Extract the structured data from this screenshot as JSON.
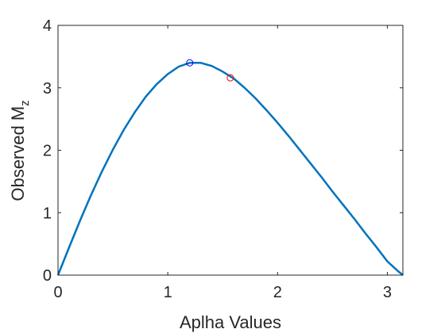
{
  "chart_data": {
    "type": "line",
    "title": "",
    "xlabel": "Aplha Values",
    "ylabel": "Observed M",
    "ylabel_subscript": "z",
    "xlim": [
      0,
      3.1416
    ],
    "ylim": [
      0,
      4
    ],
    "xticks": [
      0,
      1,
      2,
      3
    ],
    "yticks": [
      0,
      1,
      2,
      3,
      4
    ],
    "grid": false,
    "series": [
      {
        "color": "#0072BD",
        "x": [
          0,
          0.1,
          0.2,
          0.3,
          0.4,
          0.5,
          0.6,
          0.7,
          0.8,
          0.9,
          1.0,
          1.1,
          1.2,
          1.3,
          1.4,
          1.5,
          1.6,
          1.7,
          1.8,
          1.9,
          2.0,
          2.1,
          2.2,
          2.3,
          2.4,
          2.5,
          2.6,
          2.7,
          2.8,
          2.9,
          3.0,
          3.1,
          3.1416
        ],
        "y": [
          0,
          0.44,
          0.87,
          1.28,
          1.66,
          2.01,
          2.33,
          2.61,
          2.86,
          3.06,
          3.22,
          3.34,
          3.4,
          3.4,
          3.35,
          3.26,
          3.15,
          3.0,
          2.83,
          2.64,
          2.44,
          2.23,
          2.01,
          1.79,
          1.57,
          1.34,
          1.12,
          0.9,
          0.67,
          0.45,
          0.22,
          0.06,
          0
        ]
      }
    ],
    "markers": [
      {
        "x": 1.2,
        "y": 3.4,
        "color": "#0000FF",
        "shape": "circle"
      },
      {
        "x": 1.57,
        "y": 3.16,
        "color": "#FF0000",
        "shape": "circle"
      }
    ]
  }
}
